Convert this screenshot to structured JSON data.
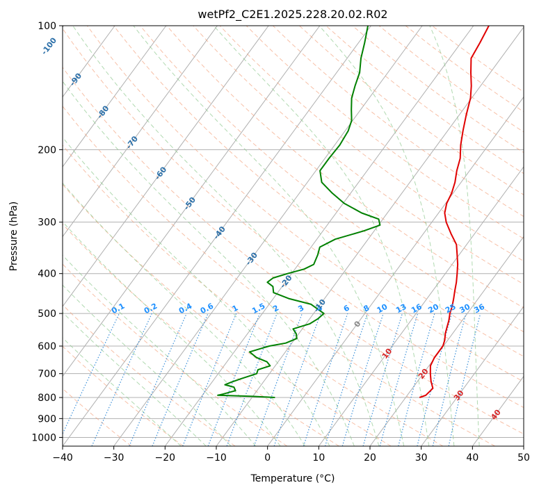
{
  "chart_data": {
    "type": "line",
    "title": "wetPf2_C2E1.2025.228.20.02.R02",
    "xlabel": "Temperature (°C)",
    "ylabel": "Pressure (hPa)",
    "xlim": [
      -40,
      50
    ],
    "ylim": [
      1050,
      100
    ],
    "y_scale": "log",
    "x_ticks": [
      "−40",
      "−30",
      "−20",
      "−10",
      "0",
      "10",
      "20",
      "30",
      "40",
      "50"
    ],
    "y_ticks": [
      "100",
      "200",
      "300",
      "400",
      "500",
      "600",
      "700",
      "800",
      "900",
      "1000"
    ],
    "grid": true,
    "colors": {
      "temperature": "#e00000",
      "dewpoint": "#008000",
      "isotherm": "#b0b0b0",
      "dry_adiabat": "#f4a582",
      "moist_adiabat": "#8fc98f",
      "mixing_ratio": "#3a8fd8",
      "isotherm_label": "#2b6fa8",
      "isotherm_label_warm": "#d62728",
      "zero_label": "#888888",
      "mixing_label": "#1e90ff"
    },
    "series": [
      {
        "name": "",
        "color": "#e00000",
        "points": [
          [
            800,
            22.7
          ],
          [
            790,
            23.6
          ],
          [
            760,
            24.0
          ],
          [
            730,
            22.6
          ],
          [
            700,
            21.4
          ],
          [
            670,
            20.3
          ],
          [
            640,
            19.9
          ],
          [
            600,
            19.9
          ],
          [
            580,
            19.4
          ],
          [
            560,
            18.6
          ],
          [
            540,
            18.0
          ],
          [
            520,
            17.4
          ],
          [
            500,
            16.6
          ],
          [
            480,
            16.0
          ],
          [
            460,
            15.2
          ],
          [
            440,
            14.3
          ],
          [
            420,
            13.4
          ],
          [
            400,
            12.3
          ],
          [
            380,
            11.1
          ],
          [
            360,
            9.6
          ],
          [
            340,
            8.0
          ],
          [
            320,
            5.4
          ],
          [
            300,
            2.8
          ],
          [
            285,
            1.2
          ],
          [
            270,
            0.2
          ],
          [
            255,
            -0.3
          ],
          [
            240,
            -1.2
          ],
          [
            225,
            -2.5
          ],
          [
            210,
            -3.6
          ],
          [
            195,
            -5.4
          ],
          [
            180,
            -7.0
          ],
          [
            165,
            -8.6
          ],
          [
            150,
            -10.2
          ],
          [
            140,
            -11.8
          ],
          [
            130,
            -13.8
          ],
          [
            120,
            -15.8
          ],
          [
            110,
            -16.3
          ],
          [
            100,
            -17.0
          ]
        ]
      },
      {
        "name": "",
        "color": "#008000",
        "points": [
          [
            800,
            -5.5
          ],
          [
            795,
            -10.0
          ],
          [
            790,
            -17.0
          ],
          [
            785,
            -16.2
          ],
          [
            770,
            -14.2
          ],
          [
            755,
            -15.0
          ],
          [
            745,
            -17.1
          ],
          [
            735,
            -16.3
          ],
          [
            720,
            -14.8
          ],
          [
            700,
            -12.5
          ],
          [
            685,
            -12.8
          ],
          [
            670,
            -11.0
          ],
          [
            655,
            -12.2
          ],
          [
            640,
            -14.8
          ],
          [
            620,
            -17.0
          ],
          [
            600,
            -14.0
          ],
          [
            590,
            -11.2
          ],
          [
            575,
            -9.7
          ],
          [
            560,
            -10.5
          ],
          [
            545,
            -11.8
          ],
          [
            530,
            -9.3
          ],
          [
            515,
            -8.4
          ],
          [
            500,
            -8.0
          ],
          [
            490,
            -9.5
          ],
          [
            475,
            -11.8
          ],
          [
            460,
            -17.0
          ],
          [
            445,
            -20.8
          ],
          [
            430,
            -21.8
          ],
          [
            420,
            -23.5
          ],
          [
            410,
            -23.0
          ],
          [
            400,
            -20.8
          ],
          [
            390,
            -18.2
          ],
          [
            380,
            -17.0
          ],
          [
            360,
            -17.6
          ],
          [
            345,
            -18.3
          ],
          [
            330,
            -16.4
          ],
          [
            315,
            -12.0
          ],
          [
            305,
            -9.7
          ],
          [
            295,
            -10.8
          ],
          [
            285,
            -15.0
          ],
          [
            270,
            -19.8
          ],
          [
            255,
            -23.6
          ],
          [
            240,
            -27.2
          ],
          [
            225,
            -29.2
          ],
          [
            210,
            -29.2
          ],
          [
            195,
            -29.0
          ],
          [
            180,
            -29.4
          ],
          [
            170,
            -30.2
          ],
          [
            160,
            -31.8
          ],
          [
            150,
            -33.4
          ],
          [
            140,
            -34.5
          ],
          [
            130,
            -35.5
          ],
          [
            120,
            -37.3
          ],
          [
            110,
            -38.8
          ],
          [
            100,
            -40.6
          ]
        ]
      }
    ],
    "isotherm_labels": [
      {
        "t": "-100",
        "p": 112
      },
      {
        "t": "-90",
        "p": 135
      },
      {
        "t": "-80",
        "p": 162
      },
      {
        "t": "-70",
        "p": 192
      },
      {
        "t": "-60",
        "p": 228
      },
      {
        "t": "-50",
        "p": 270
      },
      {
        "t": "-40",
        "p": 318
      },
      {
        "t": "-30",
        "p": 368
      },
      {
        "t": "-20",
        "p": 418
      },
      {
        "t": "-10",
        "p": 478
      }
    ],
    "isotherm_labels_right": [
      {
        "t": "0",
        "p": 530
      },
      {
        "t": "10",
        "p": 625
      },
      {
        "t": "20",
        "p": 700
      },
      {
        "t": "30",
        "p": 790
      },
      {
        "t": "40",
        "p": 880
      }
    ],
    "mixing_ratio_labels": [
      "0.1",
      "0.2",
      "0.4",
      "0.6",
      "1",
      "1.5",
      "2",
      "3",
      "4",
      "6",
      "8",
      "10",
      "13",
      "16",
      "20",
      "25",
      "30",
      "36"
    ],
    "mixing_ratio_label_pressure": 500
  }
}
